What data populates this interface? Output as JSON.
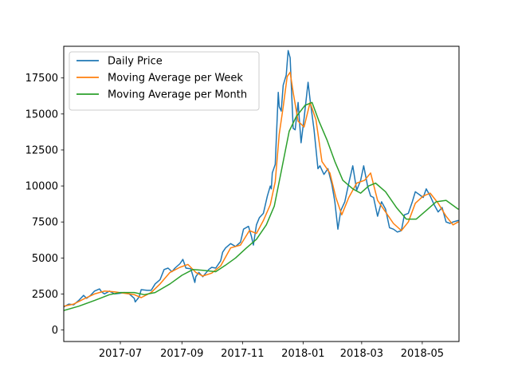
{
  "chart_data": {
    "type": "line",
    "title": "",
    "xlabel": "",
    "ylabel": "",
    "x_axis_type": "date",
    "xlim": [
      "2017-05-05",
      "2018-06-07"
    ],
    "ylim": [
      -800,
      19700
    ],
    "x_ticks": [
      {
        "date": "2017-07-01",
        "label": "2017-07"
      },
      {
        "date": "2017-09-01",
        "label": "2017-09"
      },
      {
        "date": "2017-11-01",
        "label": "2017-11"
      },
      {
        "date": "2018-01-01",
        "label": "2018-01"
      },
      {
        "date": "2018-03-01",
        "label": "2018-03"
      },
      {
        "date": "2018-05-01",
        "label": "2018-05"
      }
    ],
    "y_ticks": [
      0,
      2500,
      5000,
      7500,
      10000,
      12500,
      15000,
      17500
    ],
    "grid": false,
    "legend_position": "top-left",
    "series": [
      {
        "name": "Daily Price",
        "color": "#1f77b4",
        "points": [
          [
            "2017-05-05",
            1600
          ],
          [
            "2017-05-10",
            1800
          ],
          [
            "2017-05-15",
            1750
          ],
          [
            "2017-05-20",
            2050
          ],
          [
            "2017-05-25",
            2400
          ],
          [
            "2017-05-28",
            2200
          ],
          [
            "2017-06-01",
            2400
          ],
          [
            "2017-06-05",
            2700
          ],
          [
            "2017-06-10",
            2850
          ],
          [
            "2017-06-12",
            2650
          ],
          [
            "2017-06-15",
            2500
          ],
          [
            "2017-06-20",
            2700
          ],
          [
            "2017-06-25",
            2500
          ],
          [
            "2017-07-01",
            2550
          ],
          [
            "2017-07-05",
            2600
          ],
          [
            "2017-07-10",
            2500
          ],
          [
            "2017-07-15",
            2200
          ],
          [
            "2017-07-16",
            1950
          ],
          [
            "2017-07-20",
            2300
          ],
          [
            "2017-07-22",
            2800
          ],
          [
            "2017-07-28",
            2750
          ],
          [
            "2017-08-01",
            2750
          ],
          [
            "2017-08-05",
            3200
          ],
          [
            "2017-08-10",
            3500
          ],
          [
            "2017-08-14",
            4200
          ],
          [
            "2017-08-18",
            4300
          ],
          [
            "2017-08-22",
            4050
          ],
          [
            "2017-08-25",
            4300
          ],
          [
            "2017-08-30",
            4600
          ],
          [
            "2017-09-02",
            4900
          ],
          [
            "2017-09-05",
            4300
          ],
          [
            "2017-09-10",
            4250
          ],
          [
            "2017-09-14",
            3300
          ],
          [
            "2017-09-15",
            3700
          ],
          [
            "2017-09-18",
            4000
          ],
          [
            "2017-09-22",
            3700
          ],
          [
            "2017-09-28",
            4200
          ],
          [
            "2017-10-01",
            4350
          ],
          [
            "2017-10-05",
            4300
          ],
          [
            "2017-10-10",
            4800
          ],
          [
            "2017-10-12",
            5400
          ],
          [
            "2017-10-15",
            5700
          ],
          [
            "2017-10-20",
            6000
          ],
          [
            "2017-10-25",
            5800
          ],
          [
            "2017-10-30",
            6100
          ],
          [
            "2017-11-02",
            7000
          ],
          [
            "2017-11-07",
            7200
          ],
          [
            "2017-11-10",
            6500
          ],
          [
            "2017-11-12",
            5900
          ],
          [
            "2017-11-15",
            7300
          ],
          [
            "2017-11-18",
            7800
          ],
          [
            "2017-11-22",
            8100
          ],
          [
            "2017-11-26",
            9300
          ],
          [
            "2017-11-29",
            10000
          ],
          [
            "2017-11-30",
            9800
          ],
          [
            "2017-12-01",
            10900
          ],
          [
            "2017-12-04",
            11500
          ],
          [
            "2017-12-07",
            16500
          ],
          [
            "2017-12-08",
            15500
          ],
          [
            "2017-12-10",
            15200
          ],
          [
            "2017-12-12",
            17000
          ],
          [
            "2017-12-15",
            17700
          ],
          [
            "2017-12-17",
            19400
          ],
          [
            "2017-12-19",
            18900
          ],
          [
            "2017-12-22",
            14000
          ],
          [
            "2017-12-24",
            13900
          ],
          [
            "2017-12-27",
            15800
          ],
          [
            "2017-12-30",
            13000
          ],
          [
            "2018-01-02",
            14700
          ],
          [
            "2018-01-06",
            17200
          ],
          [
            "2018-01-08",
            16000
          ],
          [
            "2018-01-12",
            13900
          ],
          [
            "2018-01-16",
            11200
          ],
          [
            "2018-01-18",
            11400
          ],
          [
            "2018-01-22",
            10800
          ],
          [
            "2018-01-26",
            11200
          ],
          [
            "2018-01-30",
            10100
          ],
          [
            "2018-02-02",
            8900
          ],
          [
            "2018-02-05",
            7000
          ],
          [
            "2018-02-08",
            8300
          ],
          [
            "2018-02-12",
            8900
          ],
          [
            "2018-02-16",
            10200
          ],
          [
            "2018-02-20",
            11400
          ],
          [
            "2018-02-24",
            9700
          ],
          [
            "2018-02-28",
            10400
          ],
          [
            "2018-03-03",
            11400
          ],
          [
            "2018-03-07",
            10000
          ],
          [
            "2018-03-10",
            9300
          ],
          [
            "2018-03-13",
            9200
          ],
          [
            "2018-03-17",
            7900
          ],
          [
            "2018-03-21",
            8900
          ],
          [
            "2018-03-25",
            8400
          ],
          [
            "2018-03-29",
            7100
          ],
          [
            "2018-04-02",
            7000
          ],
          [
            "2018-04-06",
            6800
          ],
          [
            "2018-04-10",
            6900
          ],
          [
            "2018-04-13",
            8000
          ],
          [
            "2018-04-17",
            8100
          ],
          [
            "2018-04-21",
            8900
          ],
          [
            "2018-04-24",
            9600
          ],
          [
            "2018-04-28",
            9400
          ],
          [
            "2018-05-02",
            9200
          ],
          [
            "2018-05-05",
            9800
          ],
          [
            "2018-05-09",
            9300
          ],
          [
            "2018-05-13",
            8700
          ],
          [
            "2018-05-17",
            8200
          ],
          [
            "2018-05-21",
            8500
          ],
          [
            "2018-05-25",
            7500
          ],
          [
            "2018-05-29",
            7400
          ],
          [
            "2018-06-01",
            7500
          ],
          [
            "2018-06-06",
            7600
          ]
        ]
      },
      {
        "name": "Moving Average per Week",
        "color": "#ff7f0e",
        "points": [
          [
            "2017-05-05",
            1650
          ],
          [
            "2017-05-15",
            1800
          ],
          [
            "2017-05-25",
            2150
          ],
          [
            "2017-06-05",
            2500
          ],
          [
            "2017-06-15",
            2700
          ],
          [
            "2017-06-25",
            2650
          ],
          [
            "2017-07-05",
            2550
          ],
          [
            "2017-07-15",
            2450
          ],
          [
            "2017-07-22",
            2250
          ],
          [
            "2017-08-01",
            2600
          ],
          [
            "2017-08-10",
            3200
          ],
          [
            "2017-08-20",
            4000
          ],
          [
            "2017-08-30",
            4350
          ],
          [
            "2017-09-07",
            4550
          ],
          [
            "2017-09-15",
            4000
          ],
          [
            "2017-09-22",
            3750
          ],
          [
            "2017-10-01",
            3950
          ],
          [
            "2017-10-10",
            4450
          ],
          [
            "2017-10-20",
            5700
          ],
          [
            "2017-10-30",
            5900
          ],
          [
            "2017-11-08",
            6900
          ],
          [
            "2017-11-15",
            6700
          ],
          [
            "2017-11-22",
            7600
          ],
          [
            "2017-11-29",
            8700
          ],
          [
            "2017-12-04",
            10300
          ],
          [
            "2017-12-08",
            13600
          ],
          [
            "2017-12-12",
            15500
          ],
          [
            "2017-12-16",
            17600
          ],
          [
            "2017-12-19",
            17900
          ],
          [
            "2017-12-22",
            16500
          ],
          [
            "2017-12-27",
            14500
          ],
          [
            "2018-01-02",
            14100
          ],
          [
            "2018-01-08",
            15800
          ],
          [
            "2018-01-14",
            14600
          ],
          [
            "2018-01-20",
            11700
          ],
          [
            "2018-01-28",
            10900
          ],
          [
            "2018-02-03",
            9200
          ],
          [
            "2018-02-09",
            8000
          ],
          [
            "2018-02-16",
            9200
          ],
          [
            "2018-02-24",
            10200
          ],
          [
            "2018-03-04",
            10400
          ],
          [
            "2018-03-10",
            10900
          ],
          [
            "2018-03-17",
            9000
          ],
          [
            "2018-03-25",
            8200
          ],
          [
            "2018-04-02",
            7400
          ],
          [
            "2018-04-10",
            6900
          ],
          [
            "2018-04-17",
            7500
          ],
          [
            "2018-04-24",
            8800
          ],
          [
            "2018-05-02",
            9300
          ],
          [
            "2018-05-09",
            9500
          ],
          [
            "2018-05-17",
            8800
          ],
          [
            "2018-05-25",
            7900
          ],
          [
            "2018-06-01",
            7300
          ],
          [
            "2018-06-06",
            7500
          ]
        ]
      },
      {
        "name": "Moving Average per Month",
        "color": "#2ca02c",
        "points": [
          [
            "2017-05-05",
            1350
          ],
          [
            "2017-05-20",
            1650
          ],
          [
            "2017-06-05",
            2050
          ],
          [
            "2017-06-20",
            2450
          ],
          [
            "2017-07-01",
            2600
          ],
          [
            "2017-07-15",
            2600
          ],
          [
            "2017-07-25",
            2450
          ],
          [
            "2017-08-05",
            2600
          ],
          [
            "2017-08-20",
            3200
          ],
          [
            "2017-09-01",
            3800
          ],
          [
            "2017-09-12",
            4200
          ],
          [
            "2017-09-22",
            4150
          ],
          [
            "2017-10-05",
            4050
          ],
          [
            "2017-10-15",
            4500
          ],
          [
            "2017-10-25",
            5000
          ],
          [
            "2017-11-05",
            5700
          ],
          [
            "2017-11-15",
            6300
          ],
          [
            "2017-11-25",
            7300
          ],
          [
            "2017-12-03",
            8600
          ],
          [
            "2017-12-10",
            11000
          ],
          [
            "2017-12-18",
            13800
          ],
          [
            "2017-12-25",
            14800
          ],
          [
            "2018-01-03",
            15600
          ],
          [
            "2018-01-10",
            15800
          ],
          [
            "2018-01-17",
            14500
          ],
          [
            "2018-01-25",
            13200
          ],
          [
            "2018-02-02",
            11700
          ],
          [
            "2018-02-10",
            10400
          ],
          [
            "2018-02-20",
            9800
          ],
          [
            "2018-02-28",
            9500
          ],
          [
            "2018-03-08",
            10000
          ],
          [
            "2018-03-15",
            10200
          ],
          [
            "2018-03-25",
            9600
          ],
          [
            "2018-04-05",
            8500
          ],
          [
            "2018-04-15",
            7700
          ],
          [
            "2018-04-25",
            7700
          ],
          [
            "2018-05-05",
            8300
          ],
          [
            "2018-05-15",
            8900
          ],
          [
            "2018-05-25",
            9000
          ],
          [
            "2018-06-06",
            8400
          ]
        ]
      }
    ]
  }
}
